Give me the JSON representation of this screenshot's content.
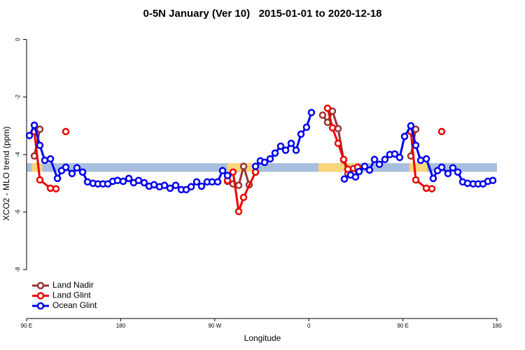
{
  "chart_data": {
    "type": "line",
    "title": "0-5N January (Ver 10)   2015-01-01 to 2020-12-18",
    "xlabel": "Longitude",
    "ylabel": "XCO2 - MLO trend (ppm)",
    "xlim": [
      90,
      540
    ],
    "xticks": [
      {
        "value": 90,
        "label": "90 E"
      },
      180,
      {
        "value": 270,
        "label": "90 W"
      },
      {
        "value": 360,
        "label": "0"
      },
      {
        "value": 450,
        "label": "90 E"
      },
      {
        "value": 540,
        "label": "180"
      }
    ],
    "ylim": [
      -9.7,
      0.4
    ],
    "yticks": [
      0,
      -2,
      -4,
      -6,
      -8
    ],
    "legend": "lower left",
    "band": {
      "ylim": [
        -4.3,
        -4.6
      ],
      "color": "#a8bedf",
      "land_color": "#f9d57c",
      "land_lon": [
        [
          95,
          105
        ],
        [
          282,
          312
        ],
        [
          369,
          406
        ],
        [
          456,
          473
        ]
      ]
    },
    "series": [
      {
        "name": "Land Nadir",
        "color": "#993333",
        "x": [
          97.4,
          102.7,
          null,
          282.2,
          287.5,
          292.9,
          297.6,
          302.9,
          null,
          373.2,
          377.9,
          382.6,
          388.0,
          393.3,
          397.4,
          402.7,
          null,
          457.6,
          462.3
        ],
        "values": [
          -4.05,
          -3.12,
          null,
          -4.93,
          -5.02,
          -5.07,
          -4.41,
          -5.05,
          null,
          -2.63,
          -2.88,
          -2.49,
          -3.1,
          -4.19,
          -4.66,
          -4.49,
          null,
          -4.05,
          -3.12
        ]
      },
      {
        "name": "Land Glint",
        "color": "#ee0000",
        "x": [
          97.4,
          102.7,
          112.8,
          118.1,
          null,
          127.5,
          null,
          282.2,
          287.5,
          292.9,
          297.6,
          309.0,
          null,
          377.9,
          382.6,
          388.0,
          393.3,
          397.4,
          402.7,
          406.7,
          null,
          457.6,
          462.3,
          472.4,
          477.7,
          null,
          487.1
        ],
        "values": [
          -3.2,
          -4.88,
          -5.17,
          -5.19,
          null,
          -3.2,
          null,
          -4.9,
          -4.61,
          -5.98,
          -5.49,
          -4.61,
          null,
          -2.39,
          -3.07,
          -3.61,
          -4.17,
          -4.51,
          -4.66,
          -4.44,
          null,
          -3.2,
          -4.88,
          -5.17,
          -5.19,
          null,
          -3.2
        ]
      },
      {
        "name": "Ocean Glint",
        "color": "#0000ee",
        "x": [
          92.7,
          97.4,
          102.7,
          107.4,
          112.8,
          119.5,
          123.5,
          127.5,
          133.5,
          138.2,
          143.6,
          148.3,
          153.6,
          158.3,
          163.0,
          167.7,
          172.4,
          177.0,
          182.4,
          187.8,
          192.4,
          197.1,
          202.5,
          207.2,
          211.9,
          217.2,
          221.9,
          227.3,
          232.6,
          238.0,
          242.7,
          247.4,
          252.7,
          257.4,
          262.8,
          267.5,
          272.8,
          277.5,
          282.2,
          null,
          309.0,
          313.6,
          317.7,
          323.0,
          327.7,
          333.1,
          337.8,
          343.1,
          347.8,
          352.5,
          357.8,
          362.5,
          null,
          394.0,
          400.0,
          404.7,
          408.1,
          413.4,
          418.1,
          422.8,
          427.5,
          432.8,
          437.5,
          442.2,
          446.9,
          451.6,
          457.6,
          462.3,
          467.0,
          472.4,
          479.0,
          483.1,
          487.1,
          493.1,
          497.8,
          502.5,
          507.2,
          511.9,
          517.2,
          521.9,
          526.6,
          531.3,
          536.0
        ],
        "values": [
          -3.34,
          -2.98,
          -3.68,
          -4.2,
          -4.15,
          -4.83,
          -4.56,
          -4.44,
          -4.66,
          -4.46,
          -4.61,
          -4.95,
          -5.0,
          -5.02,
          -5.02,
          -5.02,
          -4.93,
          -4.9,
          -4.93,
          -4.83,
          -4.98,
          -4.9,
          -4.98,
          -5.1,
          -5.05,
          -5.12,
          -5.07,
          -5.17,
          -5.07,
          -5.22,
          -5.22,
          -5.12,
          -4.95,
          -5.1,
          -4.95,
          -4.95,
          -4.95,
          -4.56,
          -4.73,
          null,
          -4.41,
          -4.22,
          -4.27,
          -4.15,
          -3.95,
          -3.71,
          -3.85,
          -3.61,
          -3.85,
          -3.29,
          -3.05,
          -2.54,
          null,
          -4.85,
          -4.71,
          -4.78,
          -4.59,
          -4.41,
          -4.54,
          -4.17,
          -4.34,
          -4.17,
          -4.0,
          -3.98,
          -4.1,
          -3.37,
          -3.0,
          -3.68,
          -4.2,
          -4.15,
          -4.83,
          -4.56,
          -4.44,
          -4.66,
          -4.46,
          -4.61,
          -4.95,
          -5.0,
          -5.02,
          -5.02,
          -5.02,
          -4.93,
          -4.9
        ]
      }
    ]
  }
}
